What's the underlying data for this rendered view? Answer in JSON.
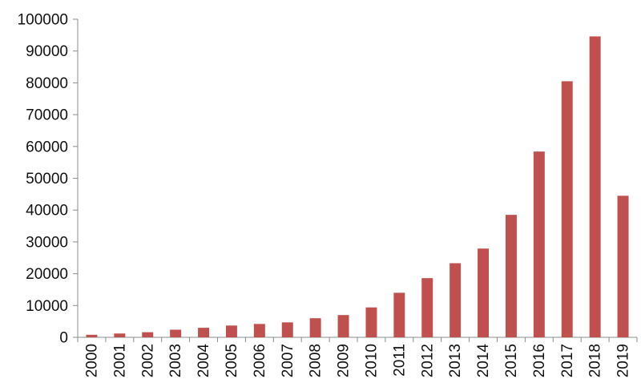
{
  "chart_data": {
    "type": "bar",
    "title": "",
    "xlabel": "",
    "ylabel": "",
    "categories": [
      "2000",
      "2001",
      "2002",
      "2003",
      "2004",
      "2005",
      "2006",
      "2007",
      "2008",
      "2009",
      "2010",
      "2011",
      "2012",
      "2013",
      "2014",
      "2015",
      "2016",
      "2017",
      "2018",
      "2019"
    ],
    "values": [
      800,
      1200,
      1600,
      2400,
      3000,
      3700,
      4200,
      4700,
      6000,
      7000,
      9400,
      14000,
      18600,
      23300,
      27900,
      38500,
      58400,
      80500,
      94600,
      44500
    ],
    "ylim": [
      0,
      100000
    ],
    "yticks": [
      "0",
      "10000",
      "20000",
      "30000",
      "40000",
      "50000",
      "60000",
      "70000",
      "80000",
      "90000",
      "100000"
    ],
    "bar_color": "#c0504d",
    "grid": false,
    "legend": "none"
  }
}
